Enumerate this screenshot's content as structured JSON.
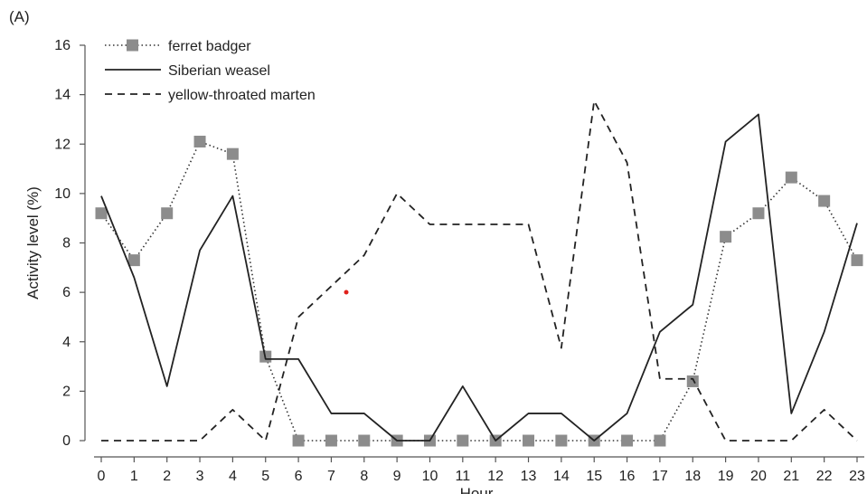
{
  "panel_label": "(A)",
  "chart_data": {
    "type": "line",
    "title": "",
    "xlabel": "Hour",
    "ylabel": "Activity level (%)",
    "x": [
      0,
      1,
      2,
      3,
      4,
      5,
      6,
      7,
      8,
      9,
      10,
      11,
      12,
      13,
      14,
      15,
      16,
      17,
      18,
      19,
      20,
      21,
      22,
      23
    ],
    "xlim": [
      0,
      23
    ],
    "ylim": [
      0,
      16
    ],
    "yticks": [
      0,
      2,
      4,
      6,
      8,
      10,
      12,
      14,
      16
    ],
    "grid": false,
    "legend_position": "top-left",
    "series": [
      {
        "name": "ferret badger",
        "style": "dotted",
        "marker": "square",
        "color": "#333333",
        "marker_color": "#8c8c8c",
        "values": [
          9.2,
          7.3,
          9.2,
          12.1,
          11.6,
          3.4,
          0,
          0,
          0,
          0,
          0,
          0,
          0,
          0,
          0,
          0,
          0,
          0,
          2.4,
          8.25,
          9.2,
          10.65,
          9.7,
          7.3
        ]
      },
      {
        "name": "Siberian weasel",
        "style": "solid",
        "marker": "none",
        "color": "#222222",
        "values": [
          9.9,
          6.6,
          2.2,
          7.7,
          9.9,
          3.3,
          3.3,
          1.1,
          1.1,
          0,
          0,
          2.2,
          0,
          1.1,
          1.1,
          0,
          1.1,
          4.4,
          5.5,
          12.1,
          13.2,
          1.1,
          4.4,
          8.8
        ]
      },
      {
        "name": "yellow-throated marten",
        "style": "dashed",
        "marker": "none",
        "color": "#222222",
        "values": [
          0,
          0,
          0,
          0,
          1.25,
          0,
          5.0,
          6.25,
          7.5,
          10.0,
          8.75,
          8.75,
          8.75,
          8.75,
          3.75,
          13.75,
          11.25,
          2.5,
          2.5,
          0,
          0,
          0,
          1.25,
          0
        ]
      }
    ]
  }
}
